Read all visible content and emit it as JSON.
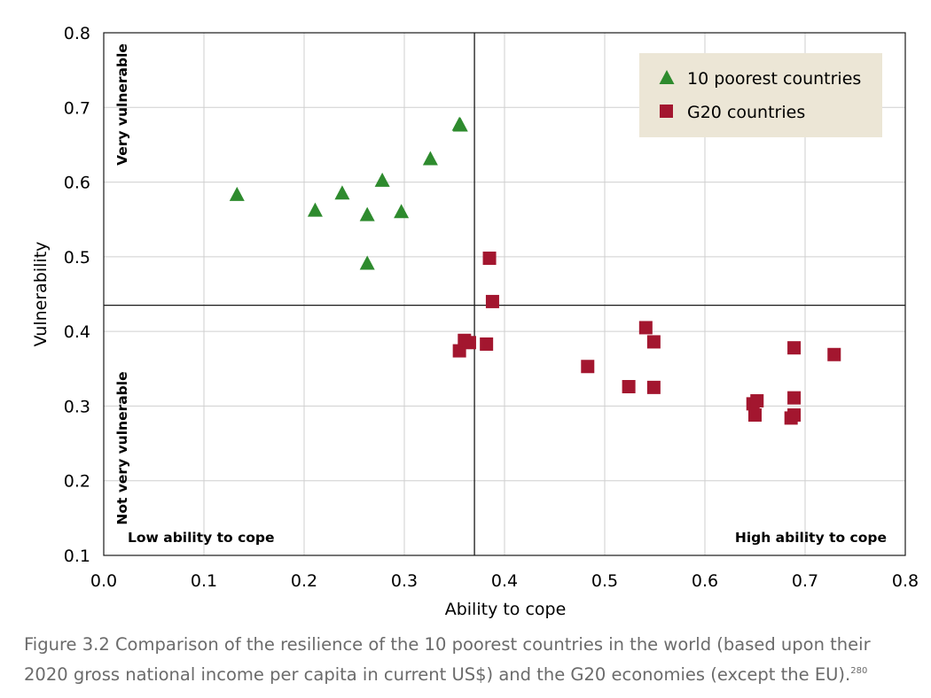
{
  "chart_data": {
    "type": "scatter",
    "xlabel": "Ability to cope",
    "ylabel": "Vulnerability",
    "xlim": [
      0.0,
      0.8
    ],
    "ylim": [
      0.1,
      0.8
    ],
    "x_ticks": [
      "0.0",
      "0.1",
      "0.2",
      "0.3",
      "0.4",
      "0.5",
      "0.6",
      "0.7",
      "0.8"
    ],
    "y_ticks": [
      "0.1",
      "0.2",
      "0.3",
      "0.4",
      "0.5",
      "0.6",
      "0.7",
      "0.8"
    ],
    "grid": true,
    "legend_position": "top-right",
    "quadrant_lines": {
      "x": 0.37,
      "y": 0.435
    },
    "annotations": {
      "very_vulnerable": "Very vulnerable",
      "not_very_vulnerable": "Not very vulnerable",
      "low_ability": "Low ability to cope",
      "high_ability": "High ability to cope"
    },
    "series": [
      {
        "name": "10 poorest countries",
        "marker": "triangle",
        "color": "#2e8b2e",
        "points": [
          [
            0.133,
            0.583
          ],
          [
            0.211,
            0.562
          ],
          [
            0.238,
            0.585
          ],
          [
            0.263,
            0.556
          ],
          [
            0.263,
            0.491
          ],
          [
            0.278,
            0.602
          ],
          [
            0.297,
            0.56
          ],
          [
            0.326,
            0.631
          ],
          [
            0.355,
            0.677
          ],
          [
            0.356,
            0.676
          ]
        ]
      },
      {
        "name": "G20 countries",
        "marker": "square",
        "color": "#a3162f",
        "points": [
          [
            0.385,
            0.498
          ],
          [
            0.388,
            0.44
          ],
          [
            0.355,
            0.374
          ],
          [
            0.36,
            0.388
          ],
          [
            0.365,
            0.385
          ],
          [
            0.382,
            0.383
          ],
          [
            0.483,
            0.353
          ],
          [
            0.524,
            0.326
          ],
          [
            0.541,
            0.405
          ],
          [
            0.549,
            0.386
          ],
          [
            0.549,
            0.325
          ],
          [
            0.648,
            0.303
          ],
          [
            0.65,
            0.288
          ],
          [
            0.652,
            0.307
          ],
          [
            0.686,
            0.284
          ],
          [
            0.689,
            0.378
          ],
          [
            0.689,
            0.311
          ],
          [
            0.689,
            0.288
          ],
          [
            0.729,
            0.369
          ]
        ]
      }
    ]
  },
  "caption": {
    "text": "Figure 3.2 Comparison of the resilience of the 10 poorest countries in the world (based upon their 2020 gross national income per capita in current US$) and the G20 economies (except the EU).",
    "ref": "280"
  },
  "colors": {
    "legend_bg": "#ece6d6",
    "grid": "#cfcfcf",
    "axis": "#1a1a1a"
  }
}
